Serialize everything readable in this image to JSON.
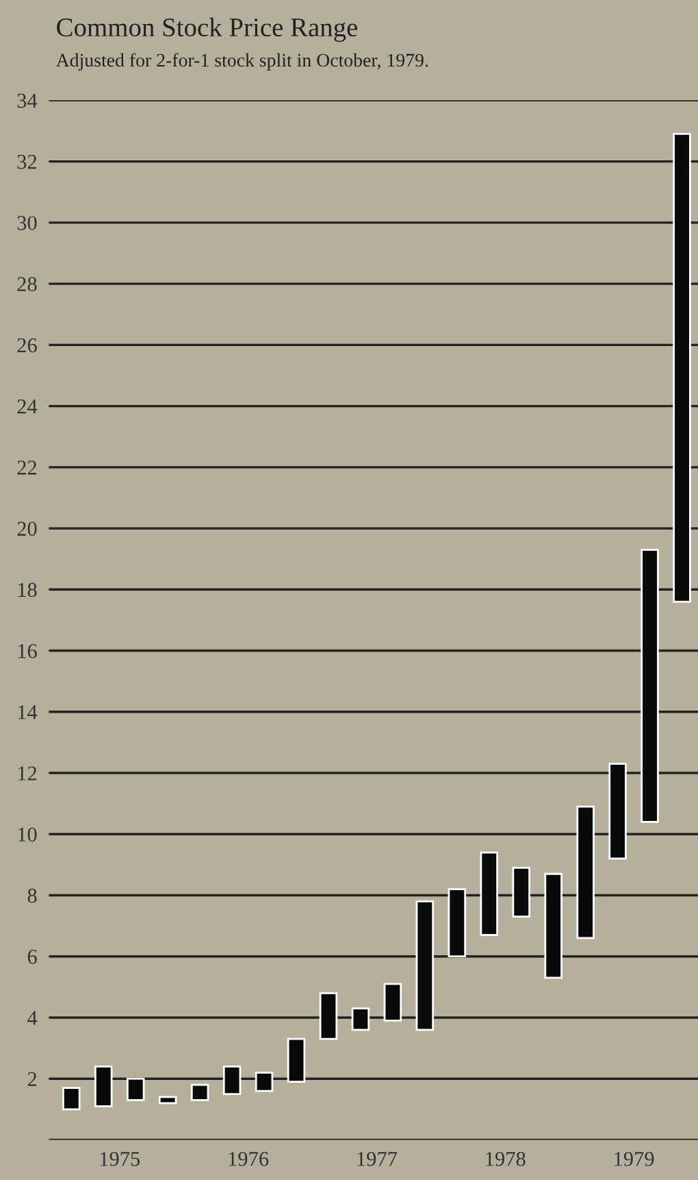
{
  "chart_data": {
    "type": "bar",
    "title": "Common Stock Price Range",
    "subtitle": "Adjusted for 2-for-1 stock split in October, 1979.",
    "x": [
      1975.125,
      1975.375,
      1975.625,
      1975.875,
      1976.125,
      1976.375,
      1976.625,
      1976.875,
      1977.125,
      1977.375,
      1977.625,
      1977.875,
      1978.125,
      1978.375,
      1978.625,
      1978.875,
      1979.125,
      1979.375,
      1979.625,
      1979.875
    ],
    "base": [
      1.0,
      1.1,
      1.3,
      1.2,
      1.3,
      1.5,
      1.6,
      1.9,
      3.3,
      3.6,
      3.9,
      3.6,
      6.0,
      6.7,
      7.3,
      5.3,
      6.6,
      9.2,
      10.4,
      17.6
    ],
    "values": [
      0.7,
      1.3,
      0.7,
      0.2,
      0.5,
      0.9,
      0.6,
      1.4,
      1.5,
      0.7,
      1.2,
      4.2,
      2.2,
      2.7,
      1.6,
      3.4,
      4.3,
      3.1,
      8.9,
      15.3
    ],
    "color": "#0a0a0a",
    "xlim": [
      1974.95,
      1980.0
    ],
    "xticks": [
      {
        "value": 1975.5,
        "label": "1975"
      },
      {
        "value": 1976.5,
        "label": "1976"
      },
      {
        "value": 1977.5,
        "label": "1977"
      },
      {
        "value": 1978.5,
        "label": "1978"
      },
      {
        "value": 1979.5,
        "label": "1979"
      }
    ],
    "ylim": [
      0,
      34
    ],
    "yticks": [
      {
        "value": 0,
        "label": null
      },
      2,
      4,
      6,
      8,
      10,
      12,
      14,
      16,
      18,
      20,
      22,
      24,
      26,
      28,
      30,
      32,
      34
    ],
    "grid": "y",
    "legend": false
  }
}
